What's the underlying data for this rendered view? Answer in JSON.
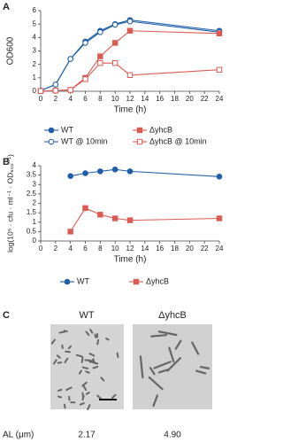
{
  "chart_data": [
    {
      "type": "line",
      "label": "A",
      "y_label": "OD600",
      "x_label": "Time (h)",
      "x": [
        0,
        2,
        4,
        6,
        8,
        10,
        12,
        24
      ],
      "xlim": [
        0,
        24
      ],
      "xticks": [
        0,
        2,
        4,
        6,
        8,
        10,
        12,
        14,
        16,
        18,
        20,
        22,
        24
      ],
      "ylim": [
        0,
        6
      ],
      "yticks": [
        0,
        1,
        2,
        3,
        4,
        5,
        6
      ],
      "series": [
        {
          "name": "WT",
          "color": "#1f5ea8",
          "marker": "circle",
          "filled": true,
          "values": [
            0.05,
            0.5,
            2.4,
            3.7,
            4.5,
            5.0,
            5.3,
            4.5
          ]
        },
        {
          "name": "WT @ 10min",
          "color": "#1f5ea8",
          "marker": "circle",
          "filled": false,
          "values": [
            0.05,
            0.5,
            2.4,
            3.6,
            4.4,
            4.95,
            5.2,
            4.4
          ]
        },
        {
          "name": "ΔyhcB",
          "color": "#dd5a52",
          "marker": "square",
          "filled": true,
          "values": [
            0.02,
            0.05,
            0.1,
            1.0,
            2.6,
            3.6,
            4.5,
            4.3
          ]
        },
        {
          "name": "ΔyhcB @ 10min",
          "color": "#dd5a52",
          "marker": "square",
          "filled": false,
          "values": [
            0.02,
            0.05,
            0.1,
            0.9,
            2.1,
            2.1,
            1.2,
            1.6
          ]
        }
      ]
    },
    {
      "type": "line",
      "label": "B",
      "y_label": "log(10⁵ · cfu · ml⁻¹ · OD₆₀₀⁻¹)",
      "x_label": "Time (h)",
      "x": [
        4,
        6,
        8,
        10,
        12,
        24
      ],
      "xlim": [
        0,
        24
      ],
      "xticks": [
        0,
        2,
        4,
        6,
        8,
        10,
        12,
        14,
        16,
        18,
        20,
        22,
        24
      ],
      "ylim": [
        0,
        4
      ],
      "yticks": [
        0,
        0.5,
        1,
        1.5,
        2,
        2.5,
        3,
        3.5,
        4
      ],
      "series": [
        {
          "name": "WT",
          "color": "#1f5ea8",
          "marker": "circle",
          "filled": true,
          "values": [
            3.45,
            3.6,
            3.7,
            3.8,
            3.7,
            3.42
          ]
        },
        {
          "name": "ΔyhcB",
          "color": "#dd5a52",
          "marker": "square",
          "filled": true,
          "values": [
            0.5,
            1.75,
            1.4,
            1.2,
            1.1,
            1.2
          ]
        }
      ]
    }
  ],
  "panel_c": {
    "label": "C",
    "columns": [
      "WT",
      "ΔyhcB"
    ],
    "row_label": "AL (μm)",
    "values": [
      "2.17",
      "4.90"
    ]
  }
}
